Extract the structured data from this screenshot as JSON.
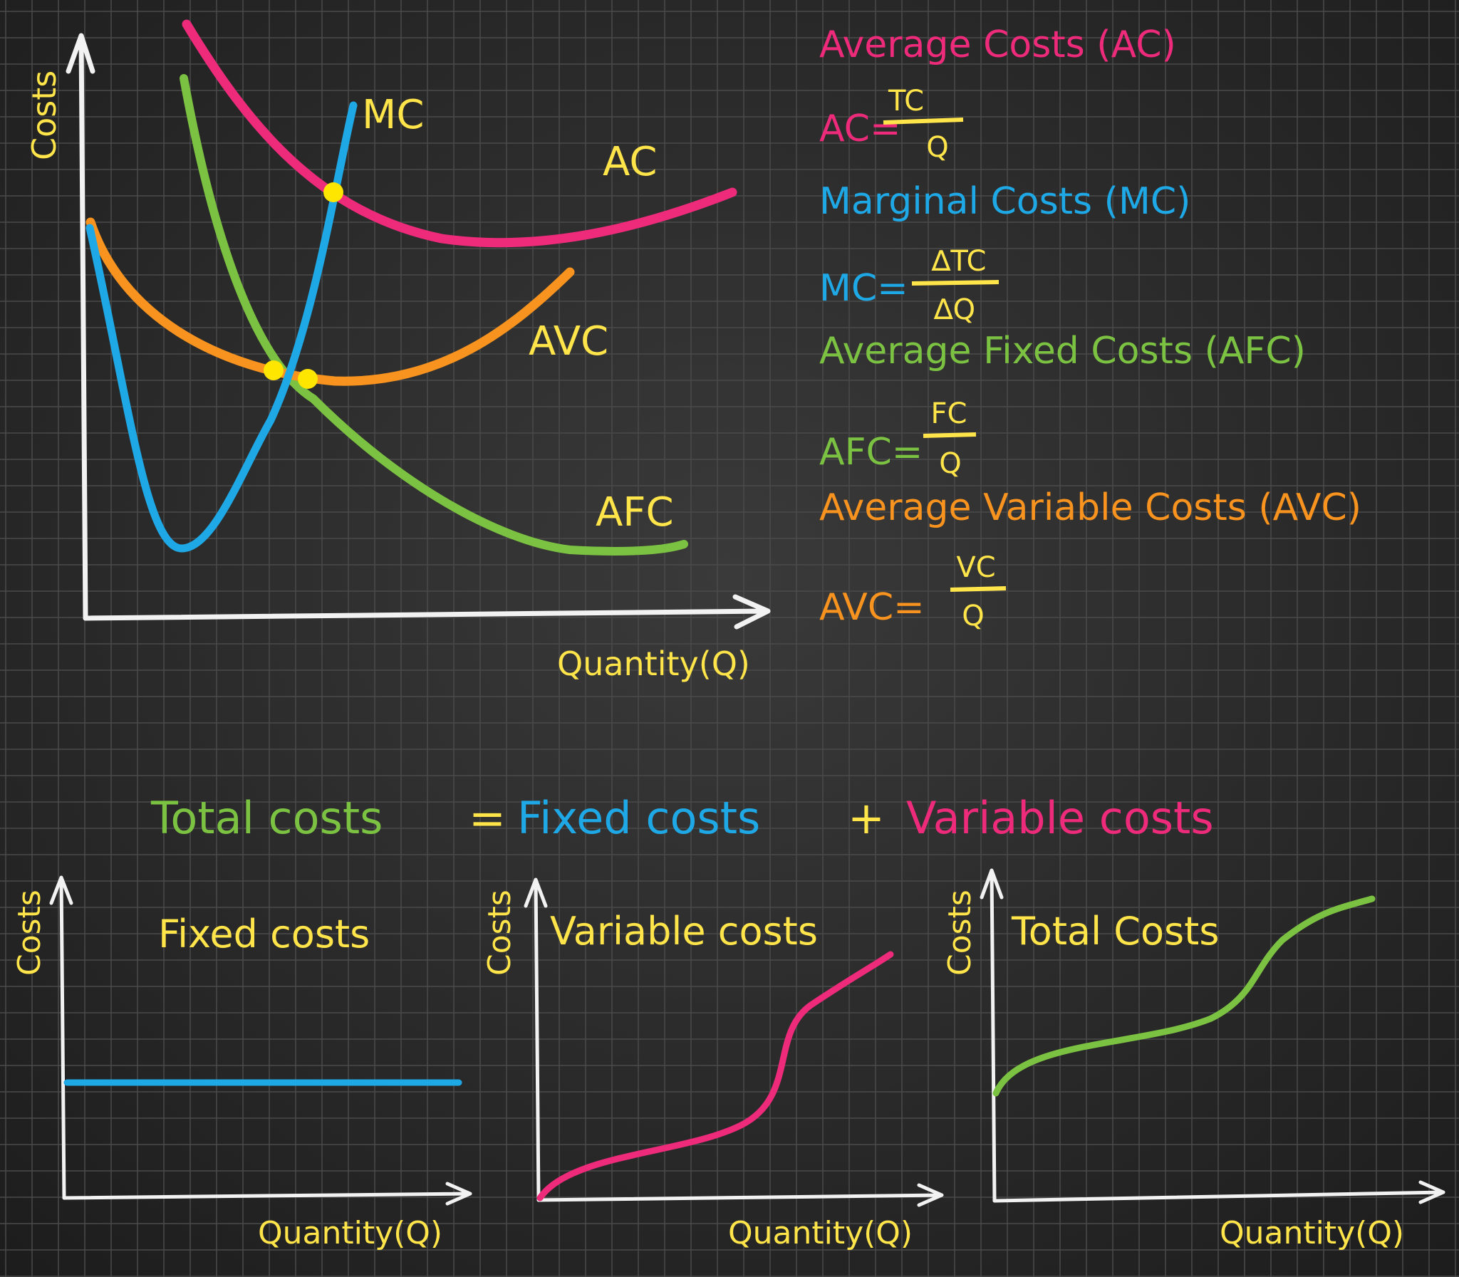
{
  "colors": {
    "board": "#242424",
    "grid": "#4a4a4a",
    "axis": "#f2f2f2",
    "yellow": "#ffe54a",
    "pink": "#ee2a7b",
    "blue": "#1fa8e6",
    "green": "#7cc242",
    "orange": "#f7931e",
    "dot": "#ffe600"
  },
  "main_graph": {
    "y_axis_label": "Costs",
    "x_axis_label": "Quantity(Q)",
    "curve_labels": {
      "mc": "MC",
      "ac": "AC",
      "avc": "AVC",
      "afc": "AFC"
    }
  },
  "definitions": {
    "ac_title": "Average Costs (AC)",
    "ac_lhs": "AC=",
    "ac_num": "TC",
    "ac_den": "Q",
    "mc_title": "Marginal Costs (MC)",
    "mc_lhs": "MC=",
    "mc_num": "∆TC",
    "mc_den": "∆Q",
    "afc_title": "Average Fixed Costs (AFC)",
    "afc_lhs": "AFC=",
    "afc_num": "FC",
    "afc_den": "Q",
    "avc_title": "Average Variable Costs (AVC)",
    "avc_lhs": "AVC=",
    "avc_num": "VC",
    "avc_den": "Q"
  },
  "equation": {
    "total": "Total costs",
    "equals": "=",
    "fixed": "Fixed costs",
    "plus": "+",
    "variable": "Variable costs"
  },
  "small_graphs": [
    {
      "title": "Fixed costs",
      "y_axis_label": "Costs",
      "x_axis_label": "Quantity(Q)"
    },
    {
      "title": "Variable costs",
      "y_axis_label": "Costs",
      "x_axis_label": "Quantity(Q)"
    },
    {
      "title": "Total Costs",
      "y_axis_label": "Costs",
      "x_axis_label": "Quantity(Q)"
    }
  ]
}
